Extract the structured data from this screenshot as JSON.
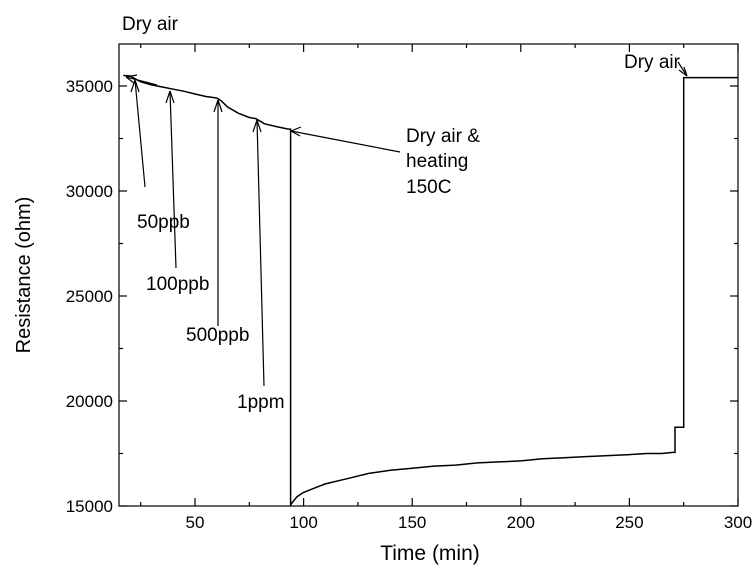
{
  "chart_data": {
    "type": "line",
    "title": "",
    "xlabel": "Time (min)",
    "ylabel": "Resistance (ohm)",
    "xlim": [
      15,
      300
    ],
    "ylim": [
      15000,
      37000
    ],
    "xticks": [
      "50",
      "100",
      "150",
      "200",
      "250",
      "300"
    ],
    "yticks": [
      "15000",
      "20000",
      "25000",
      "30000",
      "35000"
    ],
    "grid": false,
    "legend": "none",
    "line_color": "#000000",
    "series": [
      {
        "x": [
          17,
          20,
          25,
          30,
          35,
          40,
          45,
          50,
          55,
          60,
          62,
          65,
          70,
          75,
          78,
          82,
          88,
          93,
          94,
          94,
          95,
          97,
          100,
          105,
          110,
          120,
          130,
          140,
          150,
          160,
          170,
          180,
          190,
          200,
          210,
          220,
          230,
          240,
          250,
          258,
          263,
          265,
          270,
          271,
          271,
          273,
          275,
          275,
          276,
          280,
          290,
          300
        ],
        "y": [
          35500,
          35480,
          35200,
          35050,
          34950,
          34850,
          34750,
          34620,
          34500,
          34430,
          34300,
          34000,
          33700,
          33500,
          33450,
          33200,
          33050,
          32950,
          32950,
          15050,
          15200,
          15450,
          15650,
          15850,
          16050,
          16300,
          16550,
          16700,
          16800,
          16900,
          16950,
          17050,
          17100,
          17150,
          17250,
          17300,
          17350,
          17400,
          17450,
          17500,
          17500,
          17500,
          17550,
          17550,
          18750,
          18750,
          18750,
          35400,
          35400,
          35400,
          35400,
          35400
        ]
      }
    ],
    "annotations": {
      "dry_air_top_left": "Dry air",
      "ppb50": "50ppb",
      "ppb100": "100ppb",
      "ppb500": "500ppb",
      "ppm1": "1ppm",
      "heating_line1": "Dry air &",
      "heating_line2": "heating",
      "heating_line3": "150C",
      "dry_air_right": "Dry air"
    }
  }
}
